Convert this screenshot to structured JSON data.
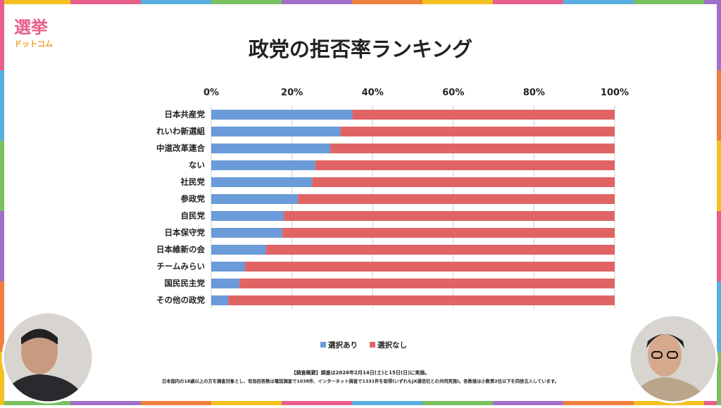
{
  "logo": {
    "top": "選挙",
    "bottom": "ドットコム"
  },
  "chart_data": {
    "type": "bar",
    "orientation": "horizontal",
    "stacked": true,
    "title": "政党の拒否率ランキング",
    "categories": [
      "日本共産党",
      "れいわ新選組",
      "中道改革連合",
      "ない",
      "社民党",
      "参政党",
      "自民党",
      "日本保守党",
      "日本維新の会",
      "チームみらい",
      "国民民主党",
      "その他の政党"
    ],
    "series": [
      {
        "name": "選択あり",
        "color": "#6b9bd8",
        "values": [
          35,
          32,
          29.5,
          25.8,
          25,
          21.5,
          18,
          17.6,
          13.6,
          8.4,
          7,
          4.2
        ]
      },
      {
        "name": "選択なし",
        "color": "#e06464",
        "values": [
          65,
          68,
          70.5,
          74.2,
          75,
          78.5,
          82,
          82.4,
          86.4,
          91.6,
          93,
          95.8
        ]
      }
    ],
    "xlim": [
      0,
      100
    ],
    "xticks": [
      {
        "value": 0,
        "label": "0%"
      },
      {
        "value": 20,
        "label": "20%"
      },
      {
        "value": 40,
        "label": "40%"
      },
      {
        "value": 60,
        "label": "60%"
      },
      {
        "value": 80,
        "label": "80%"
      },
      {
        "value": 100,
        "label": "100%"
      }
    ],
    "grid": true,
    "legend": "bottom"
  },
  "footnote": [
    "【調査概要】調査は2026年2月14日(土)と15日(日)に実施。",
    "日本国内の18歳以上の方を調査対象とし、有効回答数は電話調査で1038件、インターネット調査で1331件を取得(いずれもJX通信社との共同実施)。各数値は小数第2位以下を四捨五入しています。"
  ]
}
